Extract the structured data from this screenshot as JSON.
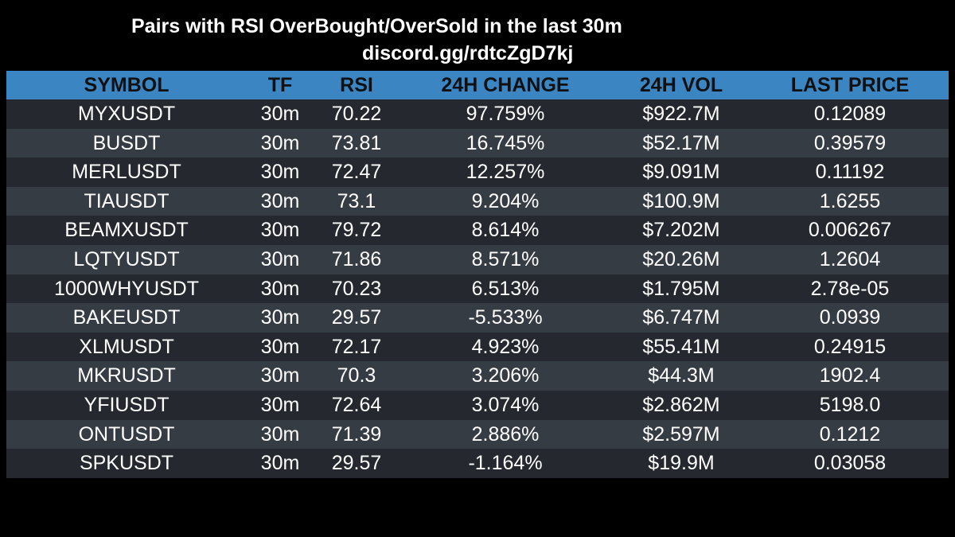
{
  "header": {
    "title": "Pairs with RSI OverBought/OverSold in the last 30m",
    "subtitle": "discord.gg/rdtcZgD7kj"
  },
  "colors": {
    "background": "#000000",
    "header_bar": "#3a85c2",
    "row_dark": "#25292f",
    "row_light": "#363c43",
    "text": "#ffffff",
    "header_text": "#101010"
  },
  "table": {
    "columns": [
      "SYMBOL",
      "TF",
      "RSI",
      "24H CHANGE",
      "24H VOL",
      "LAST PRICE"
    ],
    "rows": [
      {
        "symbol": "MYXUSDT",
        "tf": "30m",
        "rsi": "70.22",
        "change": "97.759%",
        "vol": "$922.7M",
        "price": "0.12089"
      },
      {
        "symbol": "BUSDT",
        "tf": "30m",
        "rsi": "73.81",
        "change": "16.745%",
        "vol": "$52.17M",
        "price": "0.39579"
      },
      {
        "symbol": "MERLUSDT",
        "tf": "30m",
        "rsi": "72.47",
        "change": "12.257%",
        "vol": "$9.091M",
        "price": "0.11192"
      },
      {
        "symbol": "TIAUSDT",
        "tf": "30m",
        "rsi": "73.1",
        "change": "9.204%",
        "vol": "$100.9M",
        "price": "1.6255"
      },
      {
        "symbol": "BEAMXUSDT",
        "tf": "30m",
        "rsi": "79.72",
        "change": "8.614%",
        "vol": "$7.202M",
        "price": "0.006267"
      },
      {
        "symbol": "LQTYUSDT",
        "tf": "30m",
        "rsi": "71.86",
        "change": "8.571%",
        "vol": "$20.26M",
        "price": "1.2604"
      },
      {
        "symbol": "1000WHYUSDT",
        "tf": "30m",
        "rsi": "70.23",
        "change": "6.513%",
        "vol": "$1.795M",
        "price": "2.78e-05"
      },
      {
        "symbol": "BAKEUSDT",
        "tf": "30m",
        "rsi": "29.57",
        "change": "-5.533%",
        "vol": "$6.747M",
        "price": "0.0939"
      },
      {
        "symbol": "XLMUSDT",
        "tf": "30m",
        "rsi": "72.17",
        "change": "4.923%",
        "vol": "$55.41M",
        "price": "0.24915"
      },
      {
        "symbol": "MKRUSDT",
        "tf": "30m",
        "rsi": "70.3",
        "change": "3.206%",
        "vol": "$44.3M",
        "price": "1902.4"
      },
      {
        "symbol": "YFIUSDT",
        "tf": "30m",
        "rsi": "72.64",
        "change": "3.074%",
        "vol": "$2.862M",
        "price": "5198.0"
      },
      {
        "symbol": "ONTUSDT",
        "tf": "30m",
        "rsi": "71.39",
        "change": "2.886%",
        "vol": "$2.597M",
        "price": "0.1212"
      },
      {
        "symbol": "SPKUSDT",
        "tf": "30m",
        "rsi": "29.57",
        "change": "-1.164%",
        "vol": "$19.9M",
        "price": "0.03058"
      }
    ]
  }
}
